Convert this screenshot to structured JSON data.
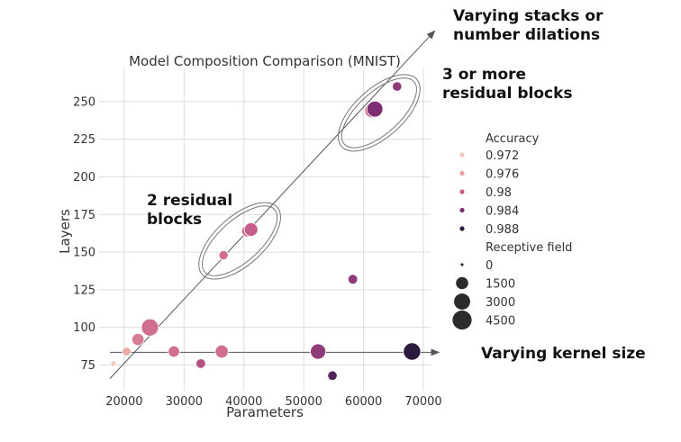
{
  "chart_data": {
    "type": "scatter",
    "title": "Model Composition Comparison (MNIST)",
    "xlabel": "Parameters",
    "ylabel": "Layers",
    "xlim": [
      15800,
      71200
    ],
    "ylim": [
      58,
      272
    ],
    "xticks": [
      20000,
      30000,
      40000,
      50000,
      60000,
      70000
    ],
    "yticks": [
      75,
      100,
      125,
      150,
      175,
      200,
      225,
      250
    ],
    "grid": true,
    "points": [
      {
        "x": 18200,
        "y": 76,
        "accuracy": 0.972,
        "receptive_field": 150
      },
      {
        "x": 20400,
        "y": 84,
        "accuracy": 0.975,
        "receptive_field": 700
      },
      {
        "x": 22300,
        "y": 92,
        "accuracy": 0.978,
        "receptive_field": 1700
      },
      {
        "x": 24300,
        "y": 100,
        "accuracy": 0.979,
        "receptive_field": 3900
      },
      {
        "x": 28300,
        "y": 84,
        "accuracy": 0.979,
        "receptive_field": 1400
      },
      {
        "x": 32800,
        "y": 76,
        "accuracy": 0.981,
        "receptive_field": 900
      },
      {
        "x": 36300,
        "y": 84,
        "accuracy": 0.979,
        "receptive_field": 2000
      },
      {
        "x": 36600,
        "y": 148,
        "accuracy": 0.979,
        "receptive_field": 800
      },
      {
        "x": 40600,
        "y": 164,
        "accuracy": 0.979,
        "receptive_field": 1500
      },
      {
        "x": 41200,
        "y": 165,
        "accuracy": 0.98,
        "receptive_field": 2200
      },
      {
        "x": 52400,
        "y": 84,
        "accuracy": 0.983,
        "receptive_field": 3000
      },
      {
        "x": 54800,
        "y": 68,
        "accuracy": 0.986,
        "receptive_field": 850
      },
      {
        "x": 58200,
        "y": 132,
        "accuracy": 0.983,
        "receptive_field": 900
      },
      {
        "x": 61400,
        "y": 244,
        "accuracy": 0.979,
        "receptive_field": 2500
      },
      {
        "x": 61900,
        "y": 245,
        "accuracy": 0.984,
        "receptive_field": 3300
      },
      {
        "x": 65600,
        "y": 260,
        "accuracy": 0.983,
        "receptive_field": 850
      },
      {
        "x": 68100,
        "y": 84,
        "accuracy": 0.988,
        "receptive_field": 4000
      }
    ],
    "legend": {
      "placement": "right",
      "color_title": "Accuracy",
      "color_entries": [
        {
          "label": "0.972",
          "color": "#f2c7c2"
        },
        {
          "label": "0.976",
          "color": "#ea9f9c"
        },
        {
          "label": "0.98",
          "color": "#c65d8b"
        },
        {
          "label": "0.984",
          "color": "#7d2e73"
        },
        {
          "label": "0.988",
          "color": "#2b1a3d"
        }
      ],
      "size_title": "Receptive field",
      "size_entries": [
        {
          "label": "0",
          "value": 0
        },
        {
          "label": "1500",
          "value": 1500
        },
        {
          "label": "3000",
          "value": 3000
        },
        {
          "label": "4500",
          "value": 4500
        }
      ]
    },
    "annotations": {
      "varying_stacks": [
        "Varying stacks or",
        "number dilations"
      ],
      "three_blocks": [
        "3 or more",
        "residual blocks"
      ],
      "two_blocks": [
        "2 residual",
        "blocks"
      ],
      "kernel": "Varying kernel size"
    },
    "colors": {
      "grid": "#dcdcdc",
      "arrow": "#555555",
      "ellipse": "#777777"
    }
  }
}
